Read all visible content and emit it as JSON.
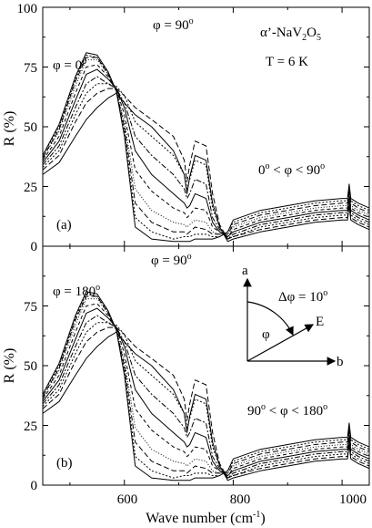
{
  "chart_data": [
    {
      "type": "line",
      "panel_label": "(a)",
      "ylabel": "R   (%)",
      "xlim": [
        450,
        1050
      ],
      "ylim": [
        0,
        100
      ],
      "xticks": [
        600,
        800,
        1000
      ],
      "yticks": [
        0,
        25,
        50,
        75,
        100
      ],
      "grid": false,
      "legend": "none",
      "annotations": {
        "compound": "α’-NaV2O5",
        "temperature": "T = 6 K",
        "phi_low": "φ = 0o",
        "phi_high": "φ = 90o",
        "range": "0o < φ < 90o"
      },
      "angles_deg": [
        0,
        10,
        20,
        30,
        40,
        50,
        60,
        70,
        80,
        90
      ],
      "x": [
        450,
        480,
        510,
        530,
        550,
        570,
        585,
        600,
        620,
        650,
        690,
        710,
        715,
        720,
        730,
        750,
        762,
        775,
        790,
        800,
        850,
        900,
        950,
        1000,
        1010,
        1013,
        1016,
        1030,
        1050
      ],
      "series": [
        {
          "values": [
            30,
            35,
            46,
            53,
            58,
            62,
            64,
            60,
            55,
            50,
            40,
            30,
            22,
            29,
            38,
            36,
            18,
            8,
            2,
            3,
            6,
            8,
            10,
            11,
            11,
            17,
            11,
            9,
            7
          ]
        },
        {
          "values": [
            32,
            38,
            52,
            60,
            64,
            66,
            66,
            63,
            58,
            53,
            46,
            36,
            27,
            34,
            44,
            42,
            22,
            9,
            3,
            4,
            7,
            9,
            11,
            12,
            12,
            18,
            12,
            10,
            8
          ]
        },
        {
          "values": [
            33,
            40,
            55,
            64,
            68,
            68,
            67,
            63,
            52,
            46,
            38,
            30,
            24,
            28,
            36,
            34,
            16,
            8,
            3,
            4,
            8,
            10,
            12,
            13,
            13,
            19,
            13,
            11,
            9
          ]
        },
        {
          "values": [
            34,
            42,
            58,
            68,
            71,
            68,
            66,
            60,
            46,
            38,
            30,
            24,
            20,
            22,
            28,
            26,
            12,
            7,
            3,
            5,
            9,
            11,
            13,
            14,
            14,
            20,
            14,
            12,
            10
          ]
        },
        {
          "values": [
            35,
            44,
            61,
            72,
            74,
            70,
            66,
            58,
            40,
            30,
            22,
            18,
            16,
            17,
            22,
            20,
            10,
            6,
            4,
            6,
            10,
            12,
            14,
            15,
            15,
            21,
            15,
            13,
            11
          ]
        },
        {
          "values": [
            36,
            46,
            64,
            75,
            76,
            71,
            66,
            55,
            32,
            23,
            16,
            14,
            12,
            13,
            16,
            15,
            8,
            6,
            4,
            7,
            11,
            13,
            15,
            16,
            16,
            22,
            16,
            14,
            12
          ]
        },
        {
          "values": [
            37,
            48,
            67,
            78,
            78,
            72,
            65,
            52,
            24,
            15,
            10,
            9,
            8,
            9,
            11,
            10,
            6,
            5,
            5,
            8,
            12,
            14,
            16,
            17,
            17,
            23,
            17,
            15,
            13
          ]
        },
        {
          "values": [
            37,
            49,
            69,
            79,
            79,
            72,
            65,
            50,
            18,
            10,
            6,
            6,
            5,
            6,
            8,
            7,
            5,
            5,
            5,
            9,
            13,
            15,
            17,
            18,
            18,
            24,
            18,
            16,
            14
          ]
        },
        {
          "values": [
            38,
            50,
            70,
            80,
            79,
            73,
            65,
            48,
            12,
            6,
            3,
            4,
            4,
            4,
            5,
            5,
            4,
            4,
            6,
            10,
            14,
            16,
            18,
            19,
            19,
            25,
            19,
            17,
            15
          ]
        },
        {
          "values": [
            38,
            51,
            71,
            81,
            80,
            73,
            65,
            46,
            8,
            3,
            2,
            2,
            2,
            2,
            3,
            3,
            3,
            4,
            6,
            11,
            15,
            17,
            19,
            20,
            20,
            26,
            20,
            18,
            16
          ]
        }
      ]
    },
    {
      "type": "line",
      "panel_label": "(b)",
      "xlabel": "Wave number   (cm-1)",
      "ylabel": "R   (%)",
      "xlim": [
        450,
        1050
      ],
      "ylim": [
        0,
        100
      ],
      "xticks": [
        600,
        800,
        1000
      ],
      "yticks": [
        0,
        25,
        50,
        75
      ],
      "grid": false,
      "legend": "none",
      "annotations": {
        "phi_high": "φ = 90o",
        "phi_180": "φ = 180o",
        "delta": "Δφ = 10o",
        "range": "90o < φ < 180o",
        "inset_axis_vertical": "a",
        "inset_axis_horizontal": "b",
        "inset_vector": "E",
        "inset_angle": "φ"
      },
      "angles_deg": [
        90,
        100,
        110,
        120,
        130,
        140,
        150,
        160,
        170,
        180
      ],
      "x": [
        450,
        480,
        510,
        530,
        550,
        570,
        585,
        600,
        620,
        650,
        690,
        710,
        715,
        720,
        730,
        750,
        762,
        775,
        790,
        800,
        850,
        900,
        950,
        1000,
        1010,
        1013,
        1016,
        1030,
        1050
      ],
      "series": [
        {
          "values": [
            30,
            35,
            46,
            53,
            58,
            62,
            64,
            60,
            55,
            50,
            40,
            30,
            22,
            29,
            38,
            36,
            18,
            8,
            2,
            3,
            6,
            8,
            10,
            11,
            11,
            17,
            11,
            9,
            7
          ]
        },
        {
          "values": [
            32,
            38,
            52,
            60,
            64,
            66,
            66,
            63,
            58,
            53,
            46,
            36,
            27,
            34,
            44,
            42,
            22,
            9,
            3,
            4,
            7,
            9,
            11,
            12,
            12,
            18,
            12,
            10,
            8
          ]
        },
        {
          "values": [
            33,
            40,
            55,
            64,
            68,
            68,
            67,
            63,
            52,
            46,
            38,
            30,
            24,
            28,
            36,
            34,
            16,
            8,
            3,
            4,
            8,
            10,
            12,
            13,
            13,
            19,
            13,
            11,
            9
          ]
        },
        {
          "values": [
            34,
            42,
            58,
            68,
            71,
            68,
            66,
            60,
            46,
            38,
            30,
            24,
            20,
            22,
            28,
            26,
            12,
            7,
            3,
            5,
            9,
            11,
            13,
            14,
            14,
            20,
            14,
            12,
            10
          ]
        },
        {
          "values": [
            35,
            44,
            61,
            72,
            74,
            70,
            66,
            58,
            40,
            30,
            22,
            18,
            16,
            17,
            22,
            20,
            10,
            6,
            4,
            6,
            10,
            12,
            14,
            15,
            15,
            21,
            15,
            13,
            11
          ]
        },
        {
          "values": [
            36,
            46,
            64,
            75,
            76,
            71,
            66,
            55,
            32,
            23,
            16,
            14,
            12,
            13,
            16,
            15,
            8,
            6,
            4,
            7,
            11,
            13,
            15,
            16,
            16,
            22,
            16,
            14,
            12
          ]
        },
        {
          "values": [
            37,
            48,
            67,
            78,
            78,
            72,
            65,
            52,
            24,
            15,
            10,
            9,
            8,
            9,
            11,
            10,
            6,
            5,
            5,
            8,
            12,
            14,
            16,
            17,
            17,
            23,
            17,
            15,
            13
          ]
        },
        {
          "values": [
            37,
            49,
            69,
            79,
            79,
            72,
            65,
            50,
            18,
            10,
            6,
            6,
            5,
            6,
            8,
            7,
            5,
            5,
            5,
            9,
            13,
            15,
            17,
            18,
            18,
            24,
            18,
            16,
            14
          ]
        },
        {
          "values": [
            38,
            50,
            70,
            80,
            79,
            73,
            65,
            48,
            12,
            6,
            3,
            4,
            4,
            4,
            5,
            5,
            4,
            4,
            6,
            10,
            14,
            16,
            18,
            19,
            19,
            25,
            19,
            17,
            15
          ]
        },
        {
          "values": [
            38,
            51,
            71,
            81,
            80,
            73,
            65,
            46,
            8,
            3,
            2,
            2,
            2,
            2,
            3,
            3,
            3,
            4,
            6,
            11,
            15,
            17,
            19,
            20,
            20,
            26,
            20,
            18,
            16
          ]
        }
      ]
    }
  ]
}
